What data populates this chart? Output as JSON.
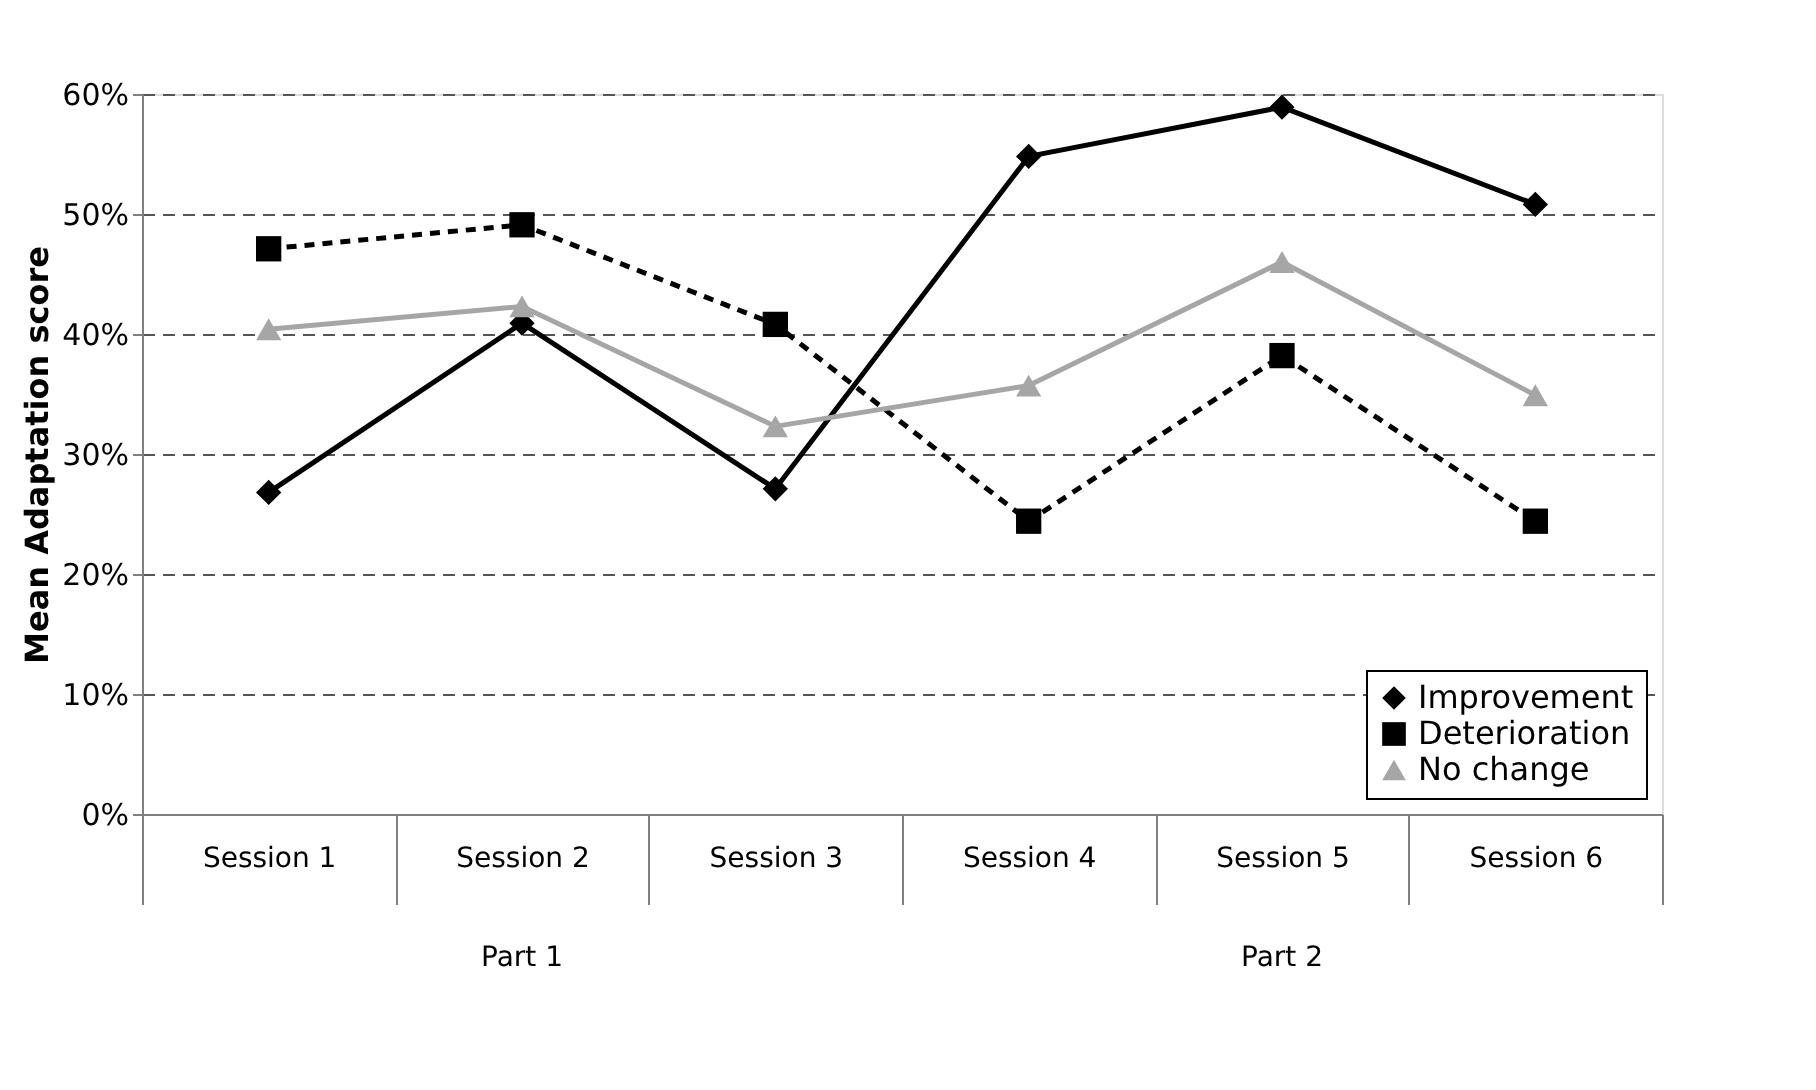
{
  "chart_data": {
    "type": "line",
    "ylabel": "Mean Adaptation score",
    "categories": [
      "Session 1",
      "Session 2",
      "Session 3",
      "Session 4",
      "Session 5",
      "Session 6"
    ],
    "series": [
      {
        "name": "Improvement",
        "color": "#000000",
        "marker": "diamond",
        "line_style": "solid",
        "values": [
          26.8,
          40.9,
          27.1,
          54.8,
          58.9,
          50.8
        ]
      },
      {
        "name": "Deterioration",
        "color": "#000000",
        "marker": "square",
        "line_style": "dashed",
        "values": [
          47.1,
          49.1,
          40.8,
          24.4,
          38.2,
          24.4
        ]
      },
      {
        "name": "No change",
        "color": "#a6a6a6",
        "marker": "triangle",
        "line_style": "solid",
        "values": [
          40.4,
          42.3,
          32.3,
          35.7,
          46.0,
          34.9
        ]
      }
    ],
    "ylim": [
      0,
      60
    ],
    "yticks": [
      {
        "value": 0,
        "label": "0%"
      },
      {
        "value": 10,
        "label": "10%"
      },
      {
        "value": 20,
        "label": "20%"
      },
      {
        "value": 30,
        "label": "30%"
      },
      {
        "value": 40,
        "label": "40%"
      },
      {
        "value": 50,
        "label": "50%"
      },
      {
        "value": 60,
        "label": "60%"
      }
    ],
    "grid": "y",
    "legend": "bottom right",
    "annotations": [
      "Part 1",
      "Part 2"
    ]
  }
}
